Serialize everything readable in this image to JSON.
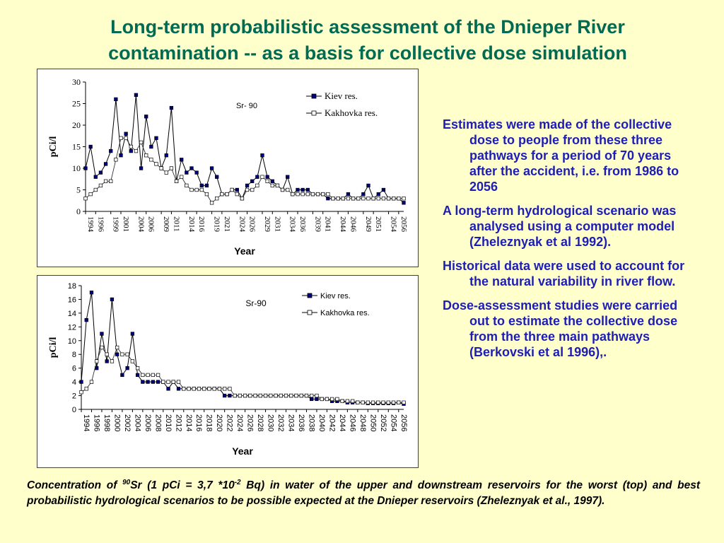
{
  "title": {
    "line1": "Long-term probabilistic assessment of the Dnieper River",
    "line2": "contamination -- as a basis for collective dose simulation"
  },
  "colors": {
    "title": "#006B52",
    "bullets": "#1E1EB4",
    "background": "#FFFFCC"
  },
  "bullets": [
    "Estimates were made of the collective dose to people from these three pathways for a period of 70 years after the accident, i.e. from 1986 to 2056",
    "A long-term hydrological scenario was analysed using a computer model (Zheleznyak et al 1992).",
    "Historical data were used to account for the natural variability in river flow.",
    "Dose-assessment studies were carried out to estimate the collective dose from the three main pathways (Berkovski et al 1996),."
  ],
  "caption": {
    "p1": "Concentration of ",
    "sup1": "90",
    "p2": "Sr (1 pCi = 3,7 *10",
    "sup2": "-2",
    "p3": " Bq) in water of the upper and downstream reservoirs for the worst  (top) and best probabilistic hydrological scenarios to be possible expected at the Dnieper reservoirs (Zheleznyak et al., 1997)."
  },
  "chart_data": [
    {
      "type": "line",
      "title": "Sr- 90",
      "xlabel": "Year",
      "ylabel": "pCi/l",
      "ylim": [
        0,
        30
      ],
      "yticks": [
        0,
        5,
        10,
        15,
        20,
        25,
        30
      ],
      "xlim": [
        1994,
        2057
      ],
      "xticks": [
        "1994",
        "1996",
        "1999",
        "2001",
        "2004",
        "2006",
        "2009",
        "2011",
        "2014",
        "2016",
        "2019",
        "2021",
        "2024",
        "2026",
        "2029",
        "2031",
        "2034",
        "2036",
        "2039",
        "2041",
        "2044",
        "2046",
        "2049",
        "2051",
        "2054",
        "2056"
      ],
      "legend_position": "top-right",
      "series": [
        {
          "name": "Kiev res.",
          "marker": "filled-square",
          "x": [
            1994,
            1995,
            1996,
            1997,
            1998,
            1999,
            2000,
            2001,
            2002,
            2003,
            2004,
            2005,
            2006,
            2007,
            2008,
            2009,
            2010,
            2011,
            2012,
            2013,
            2014,
            2015,
            2016,
            2017,
            2018,
            2019,
            2020,
            2021,
            2022,
            2023,
            2024,
            2025,
            2026,
            2027,
            2028,
            2029,
            2030,
            2031,
            2032,
            2033,
            2034,
            2035,
            2036,
            2037,
            2038,
            2039,
            2040,
            2041,
            2042,
            2043,
            2044,
            2045,
            2046,
            2047,
            2048,
            2049,
            2050,
            2051,
            2052,
            2053,
            2054,
            2055,
            2056,
            2057
          ],
          "y": [
            10,
            15,
            8,
            9,
            11,
            14,
            26,
            13,
            18,
            14,
            27,
            10,
            22,
            15,
            17,
            10,
            13,
            24,
            7,
            12,
            9,
            10,
            9,
            6,
            6,
            10,
            8,
            4,
            4,
            5,
            5,
            3,
            6,
            7,
            8,
            13,
            8,
            7,
            6,
            5,
            8,
            4,
            5,
            5,
            5,
            4,
            4,
            4,
            3,
            3,
            3,
            3,
            4,
            3,
            3,
            4,
            6,
            3,
            4,
            5,
            3,
            3,
            3,
            2
          ]
        },
        {
          "name": "Kakhovka res.",
          "marker": "open-square",
          "x": [
            1994,
            1995,
            1996,
            1997,
            1998,
            1999,
            2000,
            2001,
            2002,
            2003,
            2004,
            2005,
            2006,
            2007,
            2008,
            2009,
            2010,
            2011,
            2012,
            2013,
            2014,
            2015,
            2016,
            2017,
            2018,
            2019,
            2020,
            2021,
            2022,
            2023,
            2024,
            2025,
            2026,
            2027,
            2028,
            2029,
            2030,
            2031,
            2032,
            2033,
            2034,
            2035,
            2036,
            2037,
            2038,
            2039,
            2040,
            2041,
            2042,
            2043,
            2044,
            2045,
            2046,
            2047,
            2048,
            2049,
            2050,
            2051,
            2052,
            2053,
            2054,
            2055,
            2056,
            2057
          ],
          "y": [
            3,
            4,
            5,
            6,
            7,
            7,
            12,
            17,
            17,
            15,
            14,
            16,
            13,
            12,
            11,
            10,
            9,
            10,
            7,
            8,
            6,
            5,
            5,
            5,
            4,
            2,
            3,
            4,
            4,
            5,
            4,
            3,
            5,
            5,
            6,
            8,
            7,
            6,
            6,
            5,
            5,
            4,
            4,
            4,
            4,
            4,
            4,
            4,
            4,
            3,
            3,
            3,
            3,
            3,
            3,
            3,
            3,
            3,
            3,
            3,
            3,
            3,
            3,
            3
          ]
        }
      ]
    },
    {
      "type": "line",
      "title": "Sr-90",
      "xlabel": "Year",
      "ylabel": "pCi/l",
      "ylim": [
        0,
        18
      ],
      "yticks": [
        0,
        2,
        4,
        6,
        8,
        10,
        12,
        14,
        16,
        18
      ],
      "xlim": [
        1994,
        2057
      ],
      "xticks": [
        "1994",
        "1996",
        "1998",
        "2000",
        "2002",
        "2004",
        "2006",
        "2008",
        "2010",
        "2012",
        "2014",
        "2016",
        "2018",
        "2020",
        "2022",
        "2024",
        "2026",
        "2028",
        "2030",
        "2032",
        "2034",
        "2036",
        "2038",
        "2040",
        "2042",
        "2044",
        "2046",
        "2048",
        "2050",
        "2052",
        "2054",
        "2056"
      ],
      "legend_position": "top-right",
      "series": [
        {
          "name": "Kiev res.",
          "marker": "filled-square",
          "x": [
            1994,
            1995,
            1996,
            1997,
            1998,
            1999,
            2000,
            2001,
            2002,
            2003,
            2004,
            2005,
            2006,
            2007,
            2008,
            2009,
            2010,
            2011,
            2012,
            2013,
            2014,
            2015,
            2016,
            2017,
            2018,
            2019,
            2020,
            2021,
            2022,
            2023,
            2024,
            2025,
            2026,
            2027,
            2028,
            2029,
            2030,
            2031,
            2032,
            2033,
            2034,
            2035,
            2036,
            2037,
            2038,
            2039,
            2040,
            2041,
            2042,
            2043,
            2044,
            2045,
            2046,
            2047,
            2048,
            2049,
            2050,
            2051,
            2052,
            2053,
            2054,
            2055,
            2056,
            2057
          ],
          "y": [
            4,
            13,
            17,
            6,
            11,
            7,
            16,
            8,
            5,
            6,
            11,
            5,
            4,
            4,
            4,
            4,
            4,
            3,
            4,
            3,
            3,
            3,
            3,
            3,
            3,
            3,
            3,
            3,
            2,
            2,
            2,
            2,
            2,
            2,
            2,
            2,
            2,
            2,
            2,
            2,
            2,
            2,
            2,
            2,
            2,
            1.5,
            1.5,
            1.5,
            1.5,
            1.2,
            1.2,
            1.2,
            1,
            1,
            1,
            1,
            0.9,
            0.9,
            0.9,
            0.9,
            0.9,
            0.9,
            1,
            0.8
          ]
        },
        {
          "name": "Kakhovka res.",
          "marker": "open-square",
          "x": [
            1994,
            1995,
            1996,
            1997,
            1998,
            1999,
            2000,
            2001,
            2002,
            2003,
            2004,
            2005,
            2006,
            2007,
            2008,
            2009,
            2010,
            2011,
            2012,
            2013,
            2014,
            2015,
            2016,
            2017,
            2018,
            2019,
            2020,
            2021,
            2022,
            2023,
            2024,
            2025,
            2026,
            2027,
            2028,
            2029,
            2030,
            2031,
            2032,
            2033,
            2034,
            2035,
            2036,
            2037,
            2038,
            2039,
            2040,
            2041,
            2042,
            2043,
            2044,
            2045,
            2046,
            2047,
            2048,
            2049,
            2050,
            2051,
            2052,
            2053,
            2054,
            2055,
            2056,
            2057
          ],
          "y": [
            2.5,
            3,
            4,
            7,
            9,
            8,
            7,
            9,
            8,
            8,
            7,
            6,
            5,
            5,
            5,
            5,
            4,
            4,
            4,
            4,
            3,
            3,
            3,
            3,
            3,
            3,
            3,
            3,
            3,
            3,
            2,
            2,
            2,
            2,
            2,
            2,
            2,
            2,
            2,
            2,
            2,
            2,
            2,
            2,
            2,
            2,
            2,
            1.5,
            1.5,
            1.5,
            1.5,
            1.2,
            1.2,
            1.2,
            1,
            1,
            1,
            1,
            1,
            1,
            1,
            1,
            1,
            1
          ]
        }
      ]
    }
  ]
}
